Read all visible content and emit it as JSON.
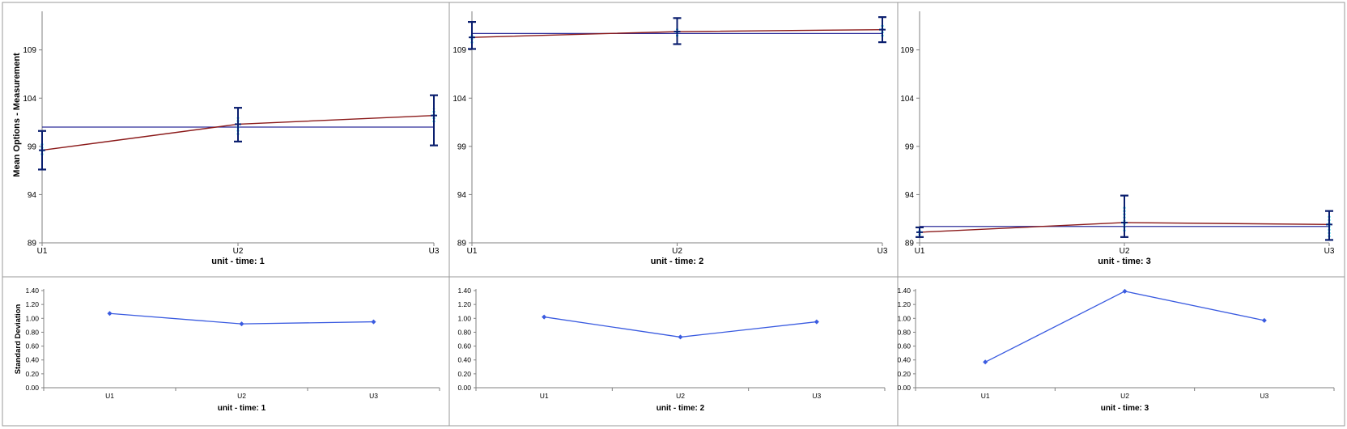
{
  "colors": {
    "mean_line": "#8B1A1A",
    "grand_mean_line": "#2E2E9A",
    "error_bar": "#0A1E6E",
    "points": "#22D3EE",
    "sd_line": "#3A5BE0",
    "panel_border": "#9A9A9A",
    "axis": "#808080"
  },
  "chart_data": [
    {
      "type": "line",
      "kind": "mean",
      "panel": 1,
      "xlabel": "unit - time: 1",
      "ylabel": "Mean Options - Measurement",
      "categories": [
        "U1",
        "U2",
        "U3"
      ],
      "yticks": [
        89,
        94,
        99,
        104,
        109
      ],
      "ylim": [
        89,
        113
      ],
      "means": [
        98.6,
        101.3,
        102.2
      ],
      "grand_mean": 101.0,
      "error_bars": [
        [
          96.6,
          100.6
        ],
        [
          99.5,
          103.0
        ],
        [
          99.1,
          104.3
        ]
      ],
      "points": [
        [
          98.1,
          99.3
        ],
        [
          100.2,
          102.0
        ],
        [
          101.5,
          102.9
        ]
      ]
    },
    {
      "type": "line",
      "kind": "mean",
      "panel": 2,
      "xlabel": "unit - time: 2",
      "ylabel": "",
      "categories": [
        "U1",
        "U2",
        "U3"
      ],
      "yticks": [
        89,
        94,
        99,
        104,
        109
      ],
      "ylim": [
        89,
        113
      ],
      "means": [
        110.3,
        110.9,
        111.1
      ],
      "grand_mean": 110.7,
      "error_bars": [
        [
          109.1,
          111.9
        ],
        [
          109.6,
          112.3
        ],
        [
          109.8,
          112.4
        ]
      ],
      "points": [
        [
          109.7,
          110.6
        ],
        [
          110.4,
          111.2
        ],
        [
          110.4,
          111.6
        ]
      ]
    },
    {
      "type": "line",
      "kind": "mean",
      "panel": 3,
      "xlabel": "unit - time: 3",
      "ylabel": "",
      "categories": [
        "U1",
        "U2",
        "U3"
      ],
      "yticks": [
        89,
        94,
        99,
        104,
        109
      ],
      "ylim": [
        89,
        113
      ],
      "means": [
        90.1,
        91.1,
        90.9
      ],
      "grand_mean": 90.7,
      "error_bars": [
        [
          89.6,
          90.6
        ],
        [
          89.6,
          93.9
        ],
        [
          89.3,
          92.3
        ]
      ],
      "points": [
        [
          89.8,
          90.4
        ],
        [
          90.2,
          92.8
        ],
        [
          89.6,
          91.9
        ]
      ]
    },
    {
      "type": "line",
      "kind": "sd",
      "panel": 1,
      "xlabel": "unit - time: 1",
      "ylabel": "Standard Deviation",
      "categories": [
        "U1",
        "U2",
        "U3"
      ],
      "yticks": [
        "0.00",
        "0.20",
        "0.40",
        "0.60",
        "0.80",
        "1.00",
        "1.20",
        "1.40"
      ],
      "ylim": [
        0,
        1.4
      ],
      "values": [
        1.07,
        0.92,
        0.95
      ]
    },
    {
      "type": "line",
      "kind": "sd",
      "panel": 2,
      "xlabel": "unit - time: 2",
      "ylabel": "",
      "categories": [
        "U1",
        "U2",
        "U3"
      ],
      "yticks": [
        "0.00",
        "0.20",
        "0.40",
        "0.60",
        "0.80",
        "1.00",
        "1.20",
        "1.40"
      ],
      "ylim": [
        0,
        1.4
      ],
      "values": [
        1.02,
        0.73,
        0.95
      ]
    },
    {
      "type": "line",
      "kind": "sd",
      "panel": 3,
      "xlabel": "unit - time: 3",
      "ylabel": "",
      "categories": [
        "U1",
        "U2",
        "U3"
      ],
      "yticks": [
        "0.00",
        "0.20",
        "0.40",
        "0.60",
        "0.80",
        "1.00",
        "1.20",
        "1.40"
      ],
      "ylim": [
        0,
        1.4
      ],
      "values": [
        0.37,
        1.39,
        0.97
      ]
    }
  ]
}
